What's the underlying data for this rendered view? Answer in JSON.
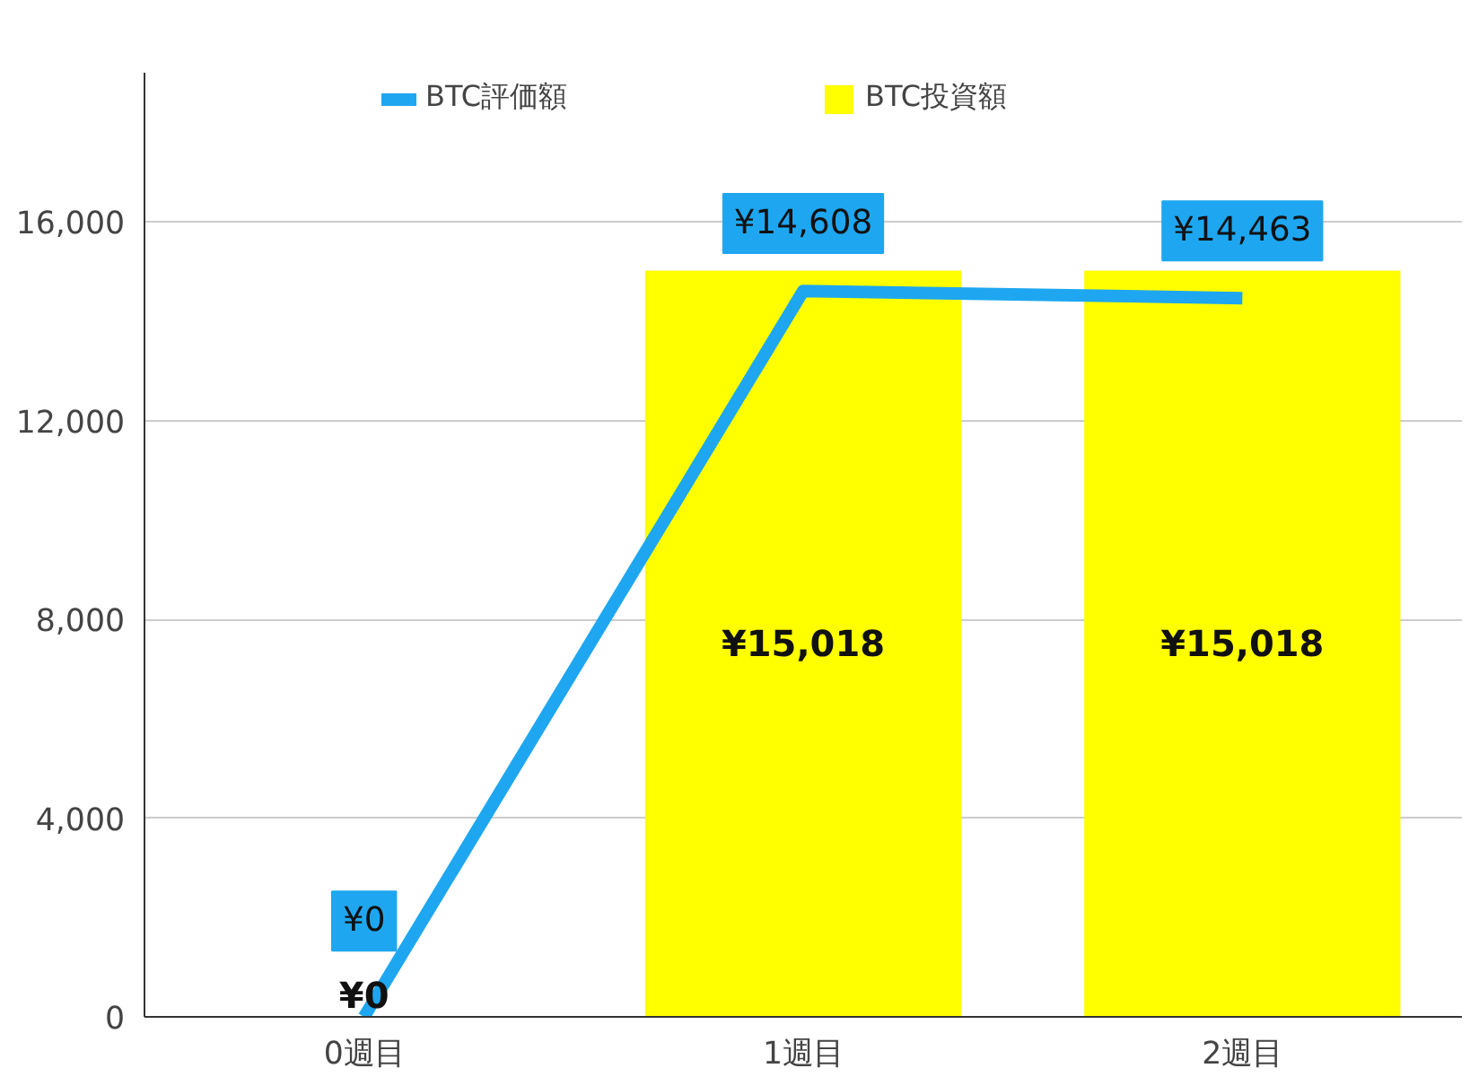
{
  "chart_data": {
    "type": "bar",
    "categories": [
      "0週目",
      "1週目",
      "2週目"
    ],
    "series": [
      {
        "name": "BTC投資額",
        "color": "#ffff00",
        "values": [
          0,
          15018,
          15018
        ],
        "value_labels": [
          "¥0",
          "¥15,018",
          "¥15,018"
        ]
      },
      {
        "name": "BTC評価額",
        "type": "line",
        "color": "#1ea7f0",
        "values": [
          0,
          14608,
          14463
        ],
        "value_labels": [
          "¥0",
          "¥14,608",
          "¥14,463"
        ]
      }
    ],
    "ylim": [
      0,
      19000
    ],
    "yticks": [
      0,
      {
        "value": 4000,
        "label": "4,000"
      },
      {
        "value": 8000,
        "label": "8,000"
      },
      {
        "value": 12000,
        "label": "12,000"
      },
      {
        "value": 16000,
        "label": "16,000"
      }
    ],
    "grid": "y",
    "legend": "top"
  }
}
